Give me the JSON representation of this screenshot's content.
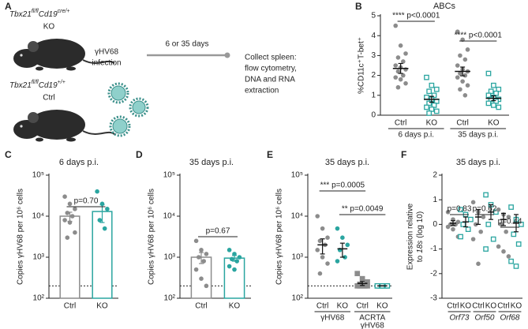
{
  "diagram": {
    "panel": "A",
    "ko_label": {
      "gene1": "Tbx21",
      "allele1": "fl/fl",
      "gene2": "Cd19",
      "allele2": "cre/+"
    },
    "ko": "KO",
    "ctrl_label": {
      "gene1": "Tbx21",
      "allele1": "fl/fl",
      "gene2": "Cd19",
      "allele2": "+/+"
    },
    "ctrl": "Ctrl",
    "infection": [
      "γHV68",
      "infection"
    ],
    "duration": "6 or 35 days",
    "outcome": [
      "Collect spleen:",
      "flow cytometry,",
      "DNA and RNA",
      "extraction"
    ]
  },
  "chart_data": [
    {
      "type": "dotplot",
      "panel": "B",
      "title": "ABCs",
      "ylabel": "%CD11c⁺T-bet⁺",
      "categories": [
        "Ctrl",
        "KO",
        "Ctrl",
        "KO"
      ],
      "groups": [
        [
          "6 days p.i."
        ],
        [
          "35 days p.i."
        ]
      ],
      "colors": [
        "#8c8c8c",
        "#2aa5a0",
        "#8c8c8c",
        "#2aa5a0"
      ],
      "markers": [
        "circle",
        "open-square",
        "circle",
        "open-square"
      ],
      "points": [
        [
          4.5,
          3.5,
          3.1,
          2.9,
          2.7,
          2.5,
          2.4,
          2.3,
          2.2,
          2.0,
          1.9,
          1.8,
          1.6,
          1.4
        ],
        [
          1.9,
          1.5,
          1.3,
          1.2,
          1.0,
          0.9,
          0.8,
          0.7,
          0.6,
          0.5,
          0.4,
          0.3,
          0.2,
          0.1
        ],
        [
          4.2,
          3.8,
          3.3,
          3.0,
          2.8,
          2.5,
          2.3,
          2.2,
          2.1,
          2.0,
          1.9,
          1.7,
          1.5,
          1.3,
          1.0
        ],
        [
          2.1,
          1.5,
          1.3,
          1.2,
          1.1,
          1.0,
          0.9,
          0.8,
          0.8,
          0.7,
          0.6,
          0.5,
          0.4
        ]
      ],
      "values": [
        2.35,
        0.8,
        2.2,
        0.85
      ],
      "errors": [
        0.25,
        0.15,
        0.22,
        0.12
      ],
      "ylim": [
        0,
        5
      ],
      "yticks": [
        0,
        1,
        2,
        3,
        4,
        5
      ],
      "annotations": [
        "**** p<0.0001",
        "**** p<0.0001"
      ]
    },
    {
      "type": "bar",
      "panel": "C",
      "title": "6 days p.i.",
      "ylabel": "Copies γHV68 per 10⁶ cells",
      "categories": [
        "Ctrl",
        "KO"
      ],
      "colors": [
        "#8c8c8c",
        "#2aa5a0"
      ],
      "markers": [
        "circle",
        "circle"
      ],
      "points": [
        [
          30000,
          20000,
          15000,
          12000,
          10000,
          8000,
          7000,
          4000,
          3000
        ],
        [
          40000,
          20000,
          15000,
          8000,
          5000
        ]
      ],
      "values": [
        10000,
        13000
      ],
      "errors": [
        2500,
        6000
      ],
      "ylim": [
        100,
        100000
      ],
      "log": true,
      "yticks": [
        {
          "value": 100,
          "label": "10²"
        },
        {
          "value": 1000,
          "label": "10³"
        },
        {
          "value": 10000,
          "label": "10⁴"
        },
        {
          "value": 100000,
          "label": "10⁵"
        }
      ],
      "lod": 200,
      "annotations": [
        "p=0.70"
      ]
    },
    {
      "type": "bar",
      "panel": "D",
      "title": "35 days p.i.",
      "ylabel": "Copies γHV68 per 10⁶ cells",
      "categories": [
        "Ctrl",
        "KO"
      ],
      "colors": [
        "#8c8c8c",
        "#2aa5a0"
      ],
      "markers": [
        "circle",
        "circle"
      ],
      "points": [
        [
          2500,
          1500,
          1200,
          1000,
          800,
          500,
          300,
          200
        ],
        [
          1500,
          1200,
          1000,
          900,
          800,
          600,
          500
        ]
      ],
      "values": [
        1000,
        950
      ],
      "errors": [
        300,
        150
      ],
      "ylim": [
        100,
        100000
      ],
      "log": true,
      "yticks": [
        {
          "value": 100,
          "label": "10²"
        },
        {
          "value": 1000,
          "label": "10³"
        },
        {
          "value": 10000,
          "label": "10⁴"
        },
        {
          "value": 100000,
          "label": "10⁵"
        }
      ],
      "lod": 200,
      "annotations": [
        "p=0.67"
      ]
    },
    {
      "type": "dotplot",
      "panel": "E",
      "title": "35 days p.i.",
      "ylabel": "Copies γHV68 per 10⁶ cells",
      "categories": [
        "Ctrl",
        "KO",
        "Ctrl",
        "KO"
      ],
      "groups": [
        [
          "γHV68"
        ],
        [
          "ACRTA",
          "γHV68"
        ]
      ],
      "colors": [
        "#8c8c8c",
        "#2aa5a0",
        "#8c8c8c",
        "#2aa5a0"
      ],
      "markers": [
        "circle",
        "circle",
        "square",
        "open-square"
      ],
      "points": [
        [
          10000,
          5000,
          3000,
          2500,
          2000,
          1500,
          1000,
          700,
          400
        ],
        [
          5000,
          3000,
          2000,
          1500,
          1000,
          800
        ],
        [
          400,
          300,
          250,
          220,
          200,
          200,
          200,
          200,
          200
        ],
        [
          200,
          200,
          200,
          200,
          200,
          200,
          200,
          200
        ]
      ],
      "values": [
        2000,
        1600,
        230,
        200
      ],
      "errors": [
        800,
        600,
        25,
        0
      ],
      "ylim": [
        100,
        100000
      ],
      "log": true,
      "yticks": [
        {
          "value": 100,
          "label": "10²"
        },
        {
          "value": 1000,
          "label": "10³"
        },
        {
          "value": 10000,
          "label": "10⁴"
        },
        {
          "value": 100000,
          "label": "10⁵"
        }
      ],
      "lod": 200,
      "annotations": [
        "*** p=0.0005",
        "** p=0.0049"
      ]
    },
    {
      "type": "dotplot",
      "panel": "F",
      "title": "35 days p.i.",
      "ylabel": [
        "Expression relative",
        "to",
        "18s",
        "(log 10)"
      ],
      "categories": [
        "Ctrl",
        "KO",
        "Ctrl",
        "KO",
        "Ctrl",
        "KO"
      ],
      "groups": [
        [
          "Orf73"
        ],
        [
          "Orf50"
        ],
        [
          "Orf68"
        ]
      ],
      "colors": [
        "#8c8c8c",
        "#2aa5a0",
        "#8c8c8c",
        "#2aa5a0",
        "#8c8c8c",
        "#2aa5a0"
      ],
      "markers": [
        "circle",
        "open-square",
        "circle",
        "open-square",
        "circle",
        "open-square"
      ],
      "points": [
        [
          0.5,
          0.2,
          0.1,
          0,
          0,
          -0.1,
          -0.2,
          -0.5
        ],
        [
          0.6,
          0.4,
          0.2,
          0,
          -0.2,
          -0.5
        ],
        [
          0.9,
          0.5,
          0.3,
          0,
          -0.3,
          -0.6,
          -1.6
        ],
        [
          1.2,
          0.8,
          0.5,
          0,
          -0.6,
          -1.0
        ],
        [
          0.6,
          0.4,
          0.3,
          0,
          -0.3,
          -0.9,
          -1.1,
          -1.3
        ],
        [
          0.7,
          0.2,
          0,
          -0.4,
          -0.8,
          -1.5,
          -1.7
        ]
      ],
      "values": [
        0.05,
        0.1,
        0.3,
        0.5,
        0.2,
        0.05
      ],
      "errors": [
        0.1,
        0.2,
        0.3,
        0.3,
        0.25,
        0.35
      ],
      "ylim": [
        -3,
        2
      ],
      "yticks": [
        -3,
        -2,
        -1,
        0,
        1,
        2
      ],
      "annotations": [
        "p=0.83",
        "p=0.62",
        "p=0.44"
      ]
    }
  ]
}
